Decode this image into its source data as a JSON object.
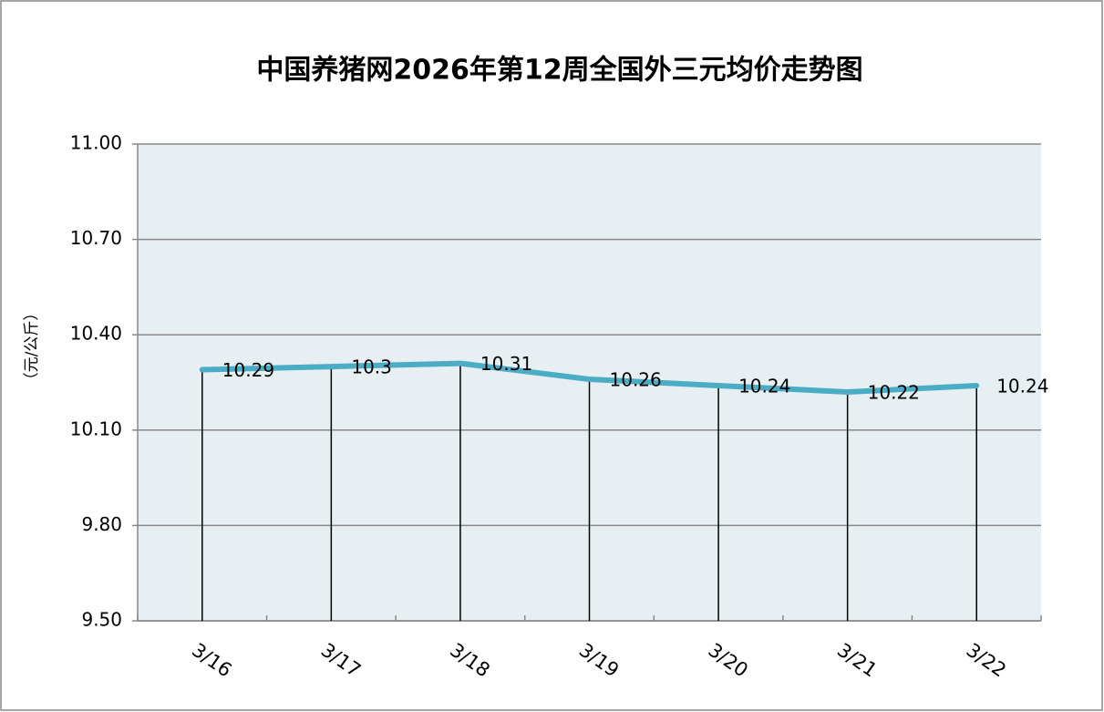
{
  "chart_data": {
    "type": "line",
    "title": "中国养猪网2026年第12周全国外三元均价走势图",
    "y_label": "（元/公斤）",
    "categories": [
      "3/16",
      "3/17",
      "3/18",
      "3/19",
      "3/20",
      "3/21",
      "3/22"
    ],
    "values": [
      10.29,
      10.3,
      10.31,
      10.26,
      10.24,
      10.22,
      10.24
    ],
    "color": "#4bacc6",
    "ylim": [
      9.5,
      11
    ],
    "yticks": [
      {
        "value": 9.5,
        "label": "9.50"
      },
      {
        "value": 9.8,
        "label": "9.80"
      },
      {
        "value": 10.1,
        "label": "10.10"
      },
      {
        "value": 10.4,
        "label": "10.40"
      },
      {
        "value": 10.7,
        "label": "10.70"
      },
      {
        "value": 11,
        "label": "11.00"
      }
    ],
    "grid": true
  }
}
